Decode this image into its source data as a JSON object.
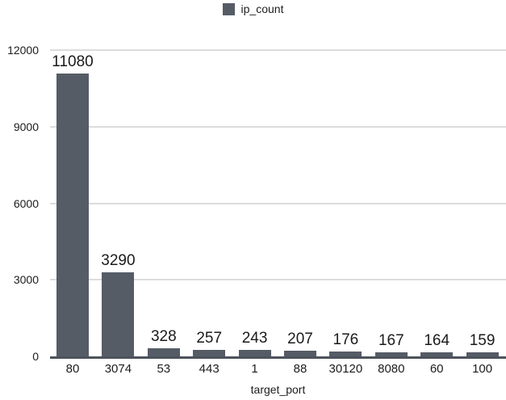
{
  "chart_data": {
    "type": "bar",
    "title": "",
    "legend": [
      "ip_count"
    ],
    "legend_position": "top-center",
    "categories": [
      "80",
      "3074",
      "53",
      "443",
      "1",
      "88",
      "30120",
      "8080",
      "60",
      "100"
    ],
    "values": [
      11080,
      3290,
      328,
      257,
      243,
      207,
      176,
      167,
      164,
      159
    ],
    "xlabel": "target_port",
    "ylabel": "",
    "ylim": [
      0,
      12000
    ],
    "yticks": [
      0,
      3000,
      6000,
      9000,
      12000
    ],
    "grid": true,
    "colors": {
      "bar": "#565c66",
      "gridline": "#dcdcdc",
      "axis_line": "#4d535c",
      "text": "#1c1c1c",
      "value_label": "#1b1b1b"
    }
  }
}
